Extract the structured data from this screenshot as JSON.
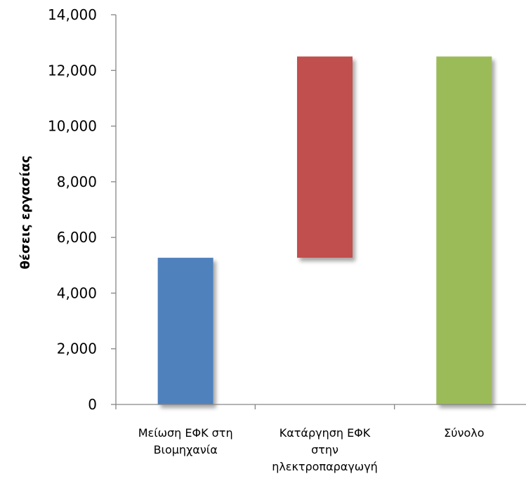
{
  "chart_data": {
    "type": "bar",
    "subtype": "waterfall",
    "title": "",
    "xlabel": "",
    "ylabel": "θέσεις εργασίας",
    "ylim": [
      0,
      14000
    ],
    "yticks": [
      0,
      2000,
      4000,
      6000,
      8000,
      10000,
      12000,
      14000
    ],
    "ytick_labels": [
      "0",
      "2,000",
      "4,000",
      "6,000",
      "8,000",
      "10,000",
      "12,000",
      "14,000"
    ],
    "grid": false,
    "legend": "none",
    "categories": [
      [
        "Μείωση ΕΦΚ στη",
        "Βιομηχανία"
      ],
      [
        "Κατάργηση ΕΦΚ",
        "στην",
        "ηλεκτροπαραγωγή"
      ],
      [
        "Σύνολο"
      ]
    ],
    "bars": [
      {
        "start": 0,
        "end": 5270,
        "color": "#4f81bd"
      },
      {
        "start": 5270,
        "end": 12500,
        "color": "#c0504d"
      },
      {
        "start": 0,
        "end": 12500,
        "color": "#9bbb59"
      }
    ]
  }
}
